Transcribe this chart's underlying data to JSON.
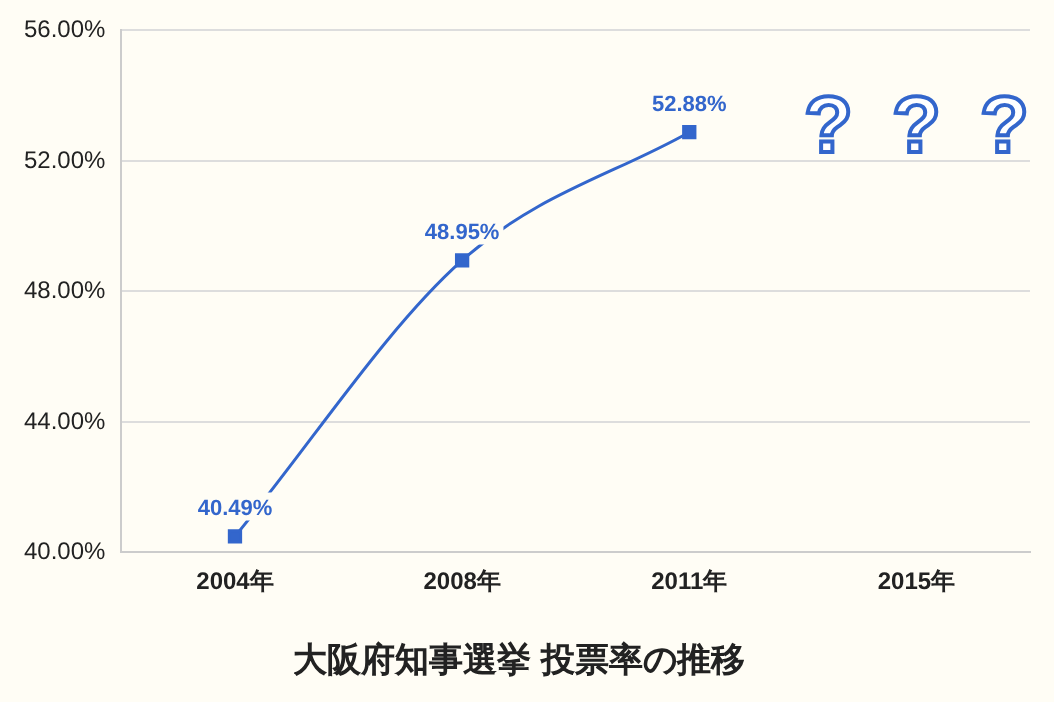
{
  "chart_data": {
    "type": "line",
    "title": "大阪府知事選挙 投票率の推移",
    "categories": [
      "2004年",
      "2008年",
      "2011年",
      "2015年"
    ],
    "series": [
      {
        "color": "#3366cc",
        "values": [
          40.49,
          48.95,
          52.88,
          null
        ],
        "value_labels": [
          "40.49%",
          "48.95%",
          "52.88%",
          null
        ]
      }
    ],
    "ylim": [
      40,
      56
    ],
    "yticks": [
      {
        "value": 40,
        "label": "40.00%"
      },
      {
        "value": 44,
        "label": "44.00%"
      },
      {
        "value": 48,
        "label": "48.00%"
      },
      {
        "value": 52,
        "label": "52.00%"
      },
      {
        "value": 56,
        "label": "56.00%"
      }
    ],
    "grid": "y",
    "marker": "square",
    "legend": false,
    "annotations": [
      "?",
      "?",
      "?"
    ]
  }
}
